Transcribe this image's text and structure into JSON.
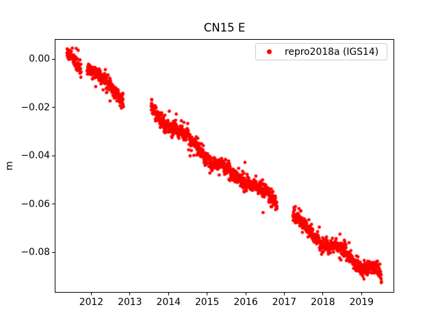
{
  "window": {
    "background": "#ffffff"
  },
  "chart_data": {
    "type": "scatter",
    "title": "CN15 E",
    "xlabel": "",
    "ylabel": "m",
    "xlim": [
      2011.053,
      2019.846
    ],
    "ylim": [
      -0.0968,
      0.0081
    ],
    "grid": false,
    "axis_color": "#000000",
    "x_ticks": {
      "values": [
        2012,
        2013,
        2014,
        2015,
        2016,
        2017,
        2018,
        2019
      ],
      "labels": [
        "2012",
        "2013",
        "2014",
        "2015",
        "2016",
        "2017",
        "2018",
        "2019"
      ]
    },
    "y_ticks": {
      "values": [
        0.0,
        -0.02,
        -0.04,
        -0.06,
        -0.08
      ],
      "labels": [
        "0.00",
        "−0.02",
        "−0.04",
        "−0.06",
        "−0.08"
      ]
    },
    "legend": {
      "position": "upper right",
      "frame_color": "#cccccc",
      "entries": [
        {
          "label": "repro2018a (IGS14)",
          "color": "#ff0000",
          "marker": "point"
        }
      ]
    },
    "series": [
      {
        "name": "repro2018a (IGS14)",
        "color": "#ff0000",
        "marker_radius_px": 2.4,
        "seasonal_amplitude": 0.0008,
        "segments": [
          {
            "t_start": 2011.37,
            "t_end": 2011.74,
            "points": 90,
            "noise_sigma": 0.0014,
            "trend": [
              [
                2011.37,
                0.0018
              ],
              [
                2011.46,
                0.001
              ],
              [
                2011.56,
                -0.0008
              ],
              [
                2011.62,
                -0.0028
              ],
              [
                2011.74,
                -0.0046
              ]
            ]
          },
          {
            "t_start": 2011.89,
            "t_end": 2012.83,
            "points": 230,
            "noise_sigma": 0.0014,
            "trend": [
              [
                2011.89,
                -0.0031
              ],
              [
                2012.12,
                -0.0062
              ],
              [
                2012.38,
                -0.0102
              ],
              [
                2012.58,
                -0.0133
              ],
              [
                2012.83,
                -0.017
              ]
            ]
          },
          {
            "t_start": 2013.55,
            "t_end": 2016.81,
            "points": 820,
            "noise_sigma": 0.0015,
            "trend": [
              [
                2013.55,
                -0.0204
              ],
              [
                2013.89,
                -0.0262
              ],
              [
                2014.3,
                -0.0306
              ],
              [
                2014.7,
                -0.035
              ],
              [
                2015.1,
                -0.0425
              ],
              [
                2015.7,
                -0.0477
              ],
              [
                2016.2,
                -0.0522
              ],
              [
                2016.55,
                -0.0562
              ],
              [
                2016.81,
                -0.059
              ]
            ]
          },
          {
            "t_start": 2017.22,
            "t_end": 2019.52,
            "points": 540,
            "noise_sigma": 0.0015,
            "trend": [
              [
                2017.22,
                -0.065
              ],
              [
                2017.61,
                -0.07
              ],
              [
                2017.97,
                -0.0765
              ],
              [
                2018.5,
                -0.079
              ],
              [
                2019.03,
                -0.0862
              ],
              [
                2019.28,
                -0.0868
              ],
              [
                2019.52,
                -0.0893
              ]
            ]
          }
        ],
        "outliers": [
          [
            2011.61,
            0.0044
          ],
          [
            2011.66,
            0.0036
          ],
          [
            2014.02,
            -0.0216
          ],
          [
            2014.52,
            -0.0376
          ],
          [
            2014.56,
            -0.0401
          ],
          [
            2015.98,
            -0.0428
          ],
          [
            2016.45,
            -0.0636
          ],
          [
            2017.43,
            -0.0629
          ],
          [
            2018.44,
            -0.0725
          ]
        ]
      }
    ]
  }
}
